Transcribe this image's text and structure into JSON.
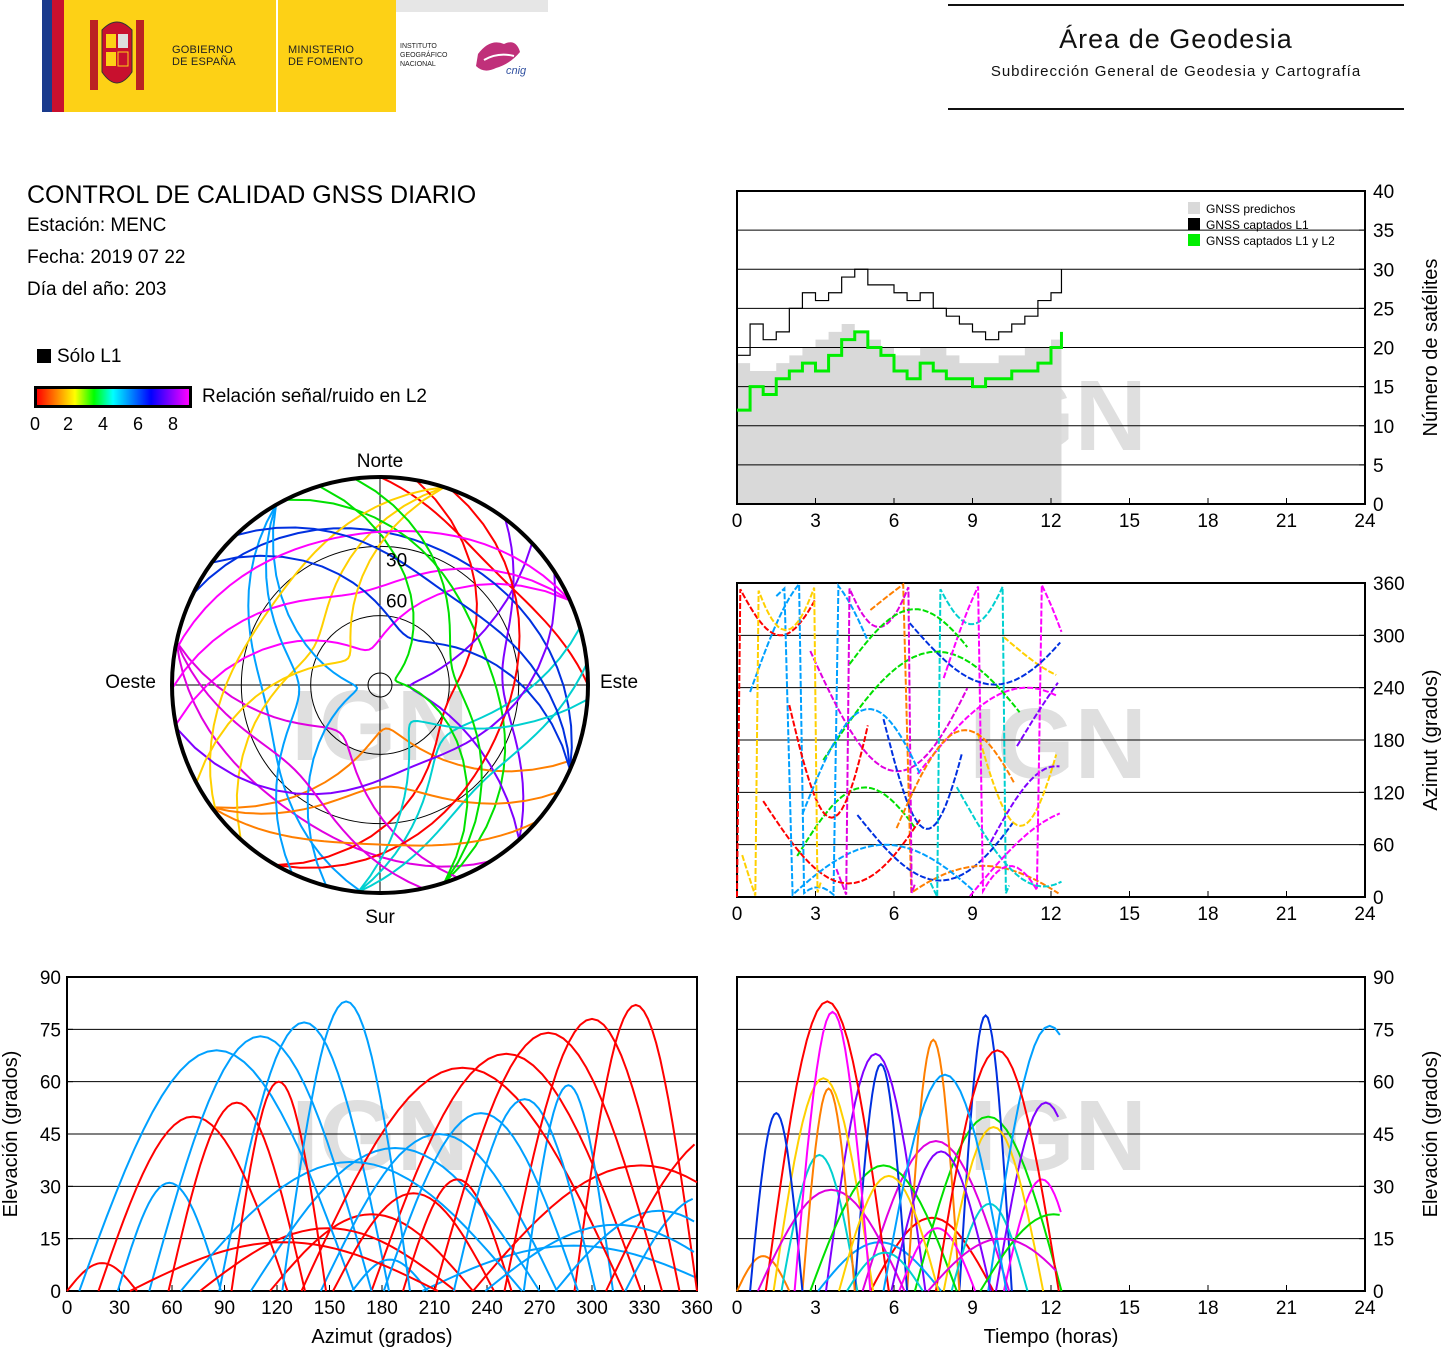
{
  "header": {
    "gobierno": "GOBIERNO\nDE ESPAÑA",
    "ministerio": "MINISTERIO\nDE FOMENTO",
    "instituto": "INSTITUTO\nGEOGRÁFICO\nNACIONAL",
    "cnig": "cnig",
    "area_title": "Área de Geodesia",
    "area_subtitle": "Subdirección General de Geodesia y Cartografía"
  },
  "report": {
    "title": "CONTROL DE CALIDAD GNSS DIARIO",
    "station": "Estación: MENC",
    "date": "Fecha: 2019 07 22",
    "doy": "Día del año: 203"
  },
  "legend": {
    "l1_only": "Sólo L1",
    "snr_label": "Relación señal/ruido en L2",
    "snr_ticks": [
      "0",
      "2",
      "4",
      "6",
      "8"
    ]
  },
  "watermark": "IGN",
  "colors": {
    "predicted": "#d9d9d9",
    "captured_l1": "#000000",
    "captured_l1l2": "#00ee00",
    "grid": "#000000"
  },
  "chart_data": [
    {
      "type": "area",
      "id": "satellite-count",
      "ylabel": "Número de satélites",
      "xlabel": "",
      "xlim": [
        0,
        24
      ],
      "ylim": [
        0,
        40
      ],
      "xticks": [
        "0",
        "3",
        "6",
        "9",
        "12",
        "15",
        "18",
        "21",
        "24"
      ],
      "yticks": [
        "0",
        "5",
        "10",
        "15",
        "20",
        "25",
        "30",
        "35",
        "40"
      ],
      "legend_position": "top-right",
      "series": [
        {
          "name": "GNSS predichos",
          "x": [
            0,
            0.5,
            1,
            1.5,
            2,
            2.5,
            3,
            3.5,
            4,
            4.5,
            5,
            5.5,
            6,
            6.5,
            7,
            7.5,
            8,
            8.5,
            9,
            9.5,
            10,
            10.5,
            11,
            11.5,
            12,
            12.4
          ],
          "values": [
            18,
            17,
            17,
            18,
            19,
            20,
            21,
            22,
            23,
            22,
            21,
            20,
            19,
            19,
            20,
            20,
            19,
            18,
            18,
            18,
            19,
            19,
            20,
            20,
            21,
            22
          ]
        },
        {
          "name": "GNSS captados L1",
          "x": [
            0,
            0.5,
            1,
            1.5,
            2,
            2.5,
            3,
            3.5,
            4,
            4.5,
            5,
            5.5,
            6,
            6.5,
            7,
            7.5,
            8,
            8.5,
            9,
            9.5,
            10,
            10.5,
            11,
            11.5,
            12,
            12.4
          ],
          "values": [
            19,
            23,
            21,
            22,
            25,
            27,
            26,
            27,
            29,
            30,
            28,
            28,
            27,
            26,
            27,
            25,
            24,
            23,
            22,
            21,
            22,
            23,
            24,
            26,
            27,
            30
          ]
        },
        {
          "name": "GNSS captados L1 y L2",
          "x": [
            0,
            0.5,
            1,
            1.5,
            2,
            2.5,
            3,
            3.5,
            4,
            4.5,
            5,
            5.5,
            6,
            6.5,
            7,
            7.5,
            8,
            8.5,
            9,
            9.5,
            10,
            10.5,
            11,
            11.5,
            12,
            12.4
          ],
          "values": [
            12,
            15,
            14,
            16,
            17,
            18,
            17,
            19,
            21,
            22,
            20,
            19,
            17,
            16,
            18,
            17,
            16,
            16,
            15,
            16,
            16,
            17,
            17,
            18,
            20,
            22
          ]
        }
      ]
    },
    {
      "type": "scatter",
      "id": "azimuth-time",
      "ylabel": "Azimut (grados)",
      "xlabel": "",
      "xlim": [
        0,
        24
      ],
      "ylim": [
        0,
        360
      ],
      "xticks": [
        "0",
        "3",
        "6",
        "9",
        "12",
        "15",
        "18",
        "21",
        "24"
      ],
      "yticks": [
        "0",
        "60",
        "120",
        "180",
        "240",
        "300",
        "360"
      ]
    },
    {
      "type": "scatter",
      "id": "skyplot",
      "labels": {
        "north": "Norte",
        "south": "Sur",
        "east": "Este",
        "west": "Oeste"
      },
      "rings": [
        "30",
        "60"
      ]
    },
    {
      "type": "scatter",
      "id": "elevation-azimuth",
      "xlabel": "Azimut (grados)",
      "ylabel": "Elevación (grados)",
      "xlim": [
        0,
        360
      ],
      "ylim": [
        0,
        90
      ],
      "xticks": [
        "0",
        "30",
        "60",
        "90",
        "120",
        "150",
        "180",
        "210",
        "240",
        "270",
        "300",
        "330",
        "360"
      ],
      "yticks": [
        "0",
        "15",
        "30",
        "45",
        "60",
        "75",
        "90"
      ]
    },
    {
      "type": "scatter",
      "id": "elevation-time",
      "xlabel": "Tiempo (horas)",
      "ylabel": "Elevación (grados)",
      "xlim": [
        0,
        24
      ],
      "ylim": [
        0,
        90
      ],
      "xticks": [
        "0",
        "3",
        "6",
        "9",
        "12",
        "15",
        "18",
        "21",
        "24"
      ],
      "yticks": [
        "0",
        "15",
        "30",
        "45",
        "60",
        "75",
        "90"
      ]
    }
  ]
}
